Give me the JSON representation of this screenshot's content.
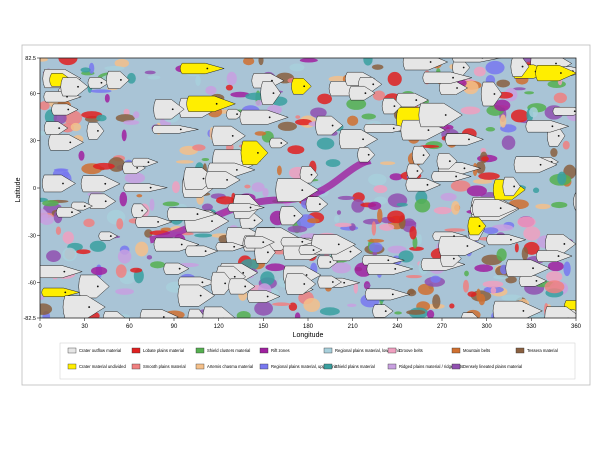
{
  "map": {
    "x_label": "Longitude",
    "y_label": "Latitude",
    "xlim": [
      0,
      360
    ],
    "ylim": [
      -82.5,
      82.5
    ],
    "xticks": [
      0,
      30,
      60,
      90,
      120,
      150,
      180,
      210,
      240,
      270,
      300,
      330,
      360
    ],
    "yticks": [
      82.5,
      60,
      30,
      0,
      -30,
      -60,
      -82.5
    ]
  },
  "legend": [
    {
      "label": "Crater outflow material",
      "color": "#e6e6e6"
    },
    {
      "label": "Crater material undivided",
      "color": "#ffee00"
    },
    {
      "label": "Lobate plains material",
      "color": "#e02020"
    },
    {
      "label": "Smooth plains material",
      "color": "#f08080"
    },
    {
      "label": "Shield clusters material",
      "color": "#55b050"
    },
    {
      "label": "Artemis chasma material",
      "color": "#f5c08a"
    },
    {
      "label": "Rift zones",
      "color": "#a020a0"
    },
    {
      "label": "Regional plains material, upper unit",
      "color": "#7878f0"
    },
    {
      "label": "Regional plains material, lower unit",
      "color": "#a8d0dc"
    },
    {
      "label": "Shield plains material",
      "color": "#3aa0a0"
    },
    {
      "label": "Groove belts",
      "color": "#f0a0c0"
    },
    {
      "label": "Ridged plains material / ridge belts",
      "color": "#c8a0e0"
    },
    {
      "label": "Mountain belts",
      "color": "#d07030"
    },
    {
      "label": "Densely lineated plains material",
      "color": "#9050b0"
    },
    {
      "label": "Tessera material",
      "color": "#8a6040"
    }
  ]
}
